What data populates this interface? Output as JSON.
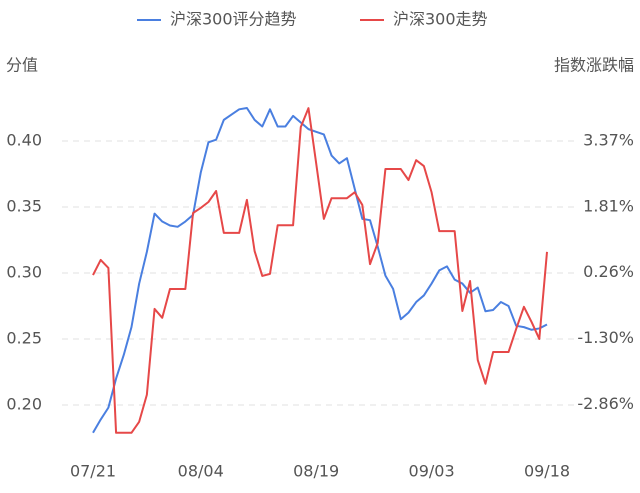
{
  "chart_data": {
    "type": "line",
    "y_label": "分值",
    "y2_label": "指数涨跌幅",
    "categories": [
      "07/21",
      null,
      null,
      null,
      null,
      null,
      null,
      null,
      null,
      null,
      null,
      null,
      null,
      null,
      "08/04",
      null,
      null,
      null,
      null,
      null,
      null,
      null,
      null,
      null,
      null,
      null,
      null,
      null,
      null,
      "08/19",
      null,
      null,
      null,
      null,
      null,
      null,
      null,
      null,
      null,
      null,
      null,
      null,
      null,
      null,
      "09/03",
      null,
      null,
      null,
      null,
      null,
      null,
      null,
      null,
      null,
      null,
      null,
      null,
      null,
      null,
      "09/18"
    ],
    "series": [
      {
        "name": "沪深300评分趋势",
        "color": "#4a7fe0",
        "axis": "y",
        "values": [
          0.179,
          0.189,
          0.198,
          0.22,
          0.238,
          0.259,
          0.292,
          0.316,
          0.345,
          0.339,
          0.336,
          0.335,
          0.339,
          0.344,
          0.376,
          0.399,
          0.401,
          0.416,
          0.42,
          0.424,
          0.425,
          0.416,
          0.411,
          0.424,
          0.411,
          0.411,
          0.419,
          0.414,
          0.409,
          0.407,
          0.405,
          0.389,
          0.383,
          0.387,
          0.364,
          0.341,
          0.34,
          0.32,
          0.298,
          0.288,
          0.265,
          0.27,
          0.278,
          0.283,
          0.292,
          0.302,
          0.305,
          0.295,
          0.292,
          0.285,
          0.289,
          0.271,
          0.272,
          0.278,
          0.275,
          0.26,
          0.259,
          0.257,
          0.258,
          0.261
        ]
      },
      {
        "name": "沪深300走势",
        "color": "#e64848",
        "axis": "y2",
        "values": [
          0.2,
          0.56,
          0.37,
          -3.53,
          -3.53,
          -3.53,
          -3.27,
          -2.63,
          -0.6,
          -0.81,
          -0.13,
          -0.13,
          -0.13,
          1.67,
          1.79,
          1.93,
          2.19,
          1.2,
          1.2,
          1.2,
          1.98,
          0.77,
          0.18,
          0.23,
          1.38,
          1.38,
          1.38,
          3.7,
          4.15,
          2.85,
          1.53,
          2.02,
          2.02,
          2.02,
          2.16,
          1.86,
          0.46,
          0.96,
          2.71,
          2.71,
          2.71,
          2.45,
          2.92,
          2.78,
          2.16,
          1.24,
          1.24,
          1.24,
          -0.65,
          0.06,
          -1.81,
          -2.37,
          -1.62,
          -1.62,
          -1.62,
          -1.07,
          -0.55,
          -0.91,
          -1.31,
          0.75
        ]
      }
    ],
    "ylim": [
      0.17,
      0.43
    ],
    "yticks": [
      {
        "value": 0.2,
        "label": "0.20"
      },
      0.25,
      {
        "value": 0.3,
        "label": "0.30"
      },
      0.35,
      {
        "value": 0.4,
        "label": "0.40"
      }
    ],
    "y2lim": [
      -3.81,
      4.31
    ],
    "y2ticks": [
      {
        "value": -2.86,
        "label": "-2.86%"
      },
      {
        "value": -1.3,
        "label": "-1.30%"
      },
      {
        "value": 0.26,
        "label": "0.26%"
      },
      {
        "value": 1.81,
        "label": "1.81%"
      },
      {
        "value": 3.37,
        "label": "3.37%"
      }
    ],
    "grid": true,
    "legend": "top"
  }
}
